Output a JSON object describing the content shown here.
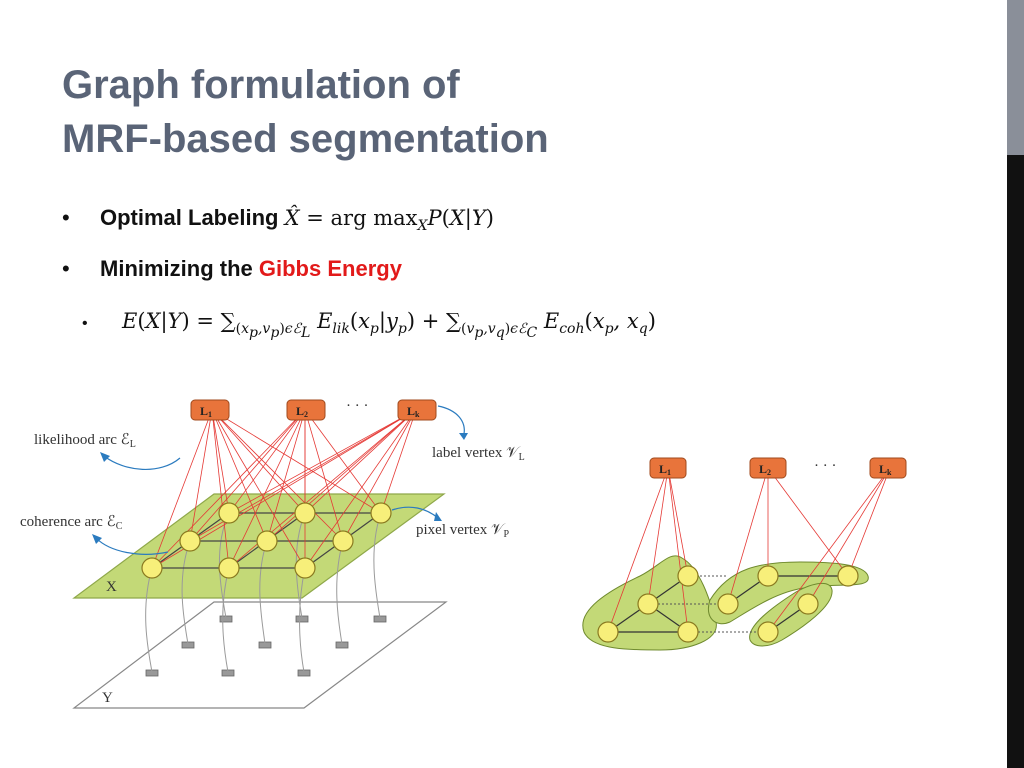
{
  "title": {
    "line1": "Graph formulation of",
    "line2": "MRF-based segmentation"
  },
  "bullets": {
    "b1": {
      "marker": "•",
      "label": "Optimal Labeling",
      "formula": "X̂ = arg max_X P(X|Y)"
    },
    "b2": {
      "marker": "•",
      "prefix": "Minimizing the",
      "highlight": "Gibbs Energy"
    },
    "b3": {
      "marker": "•",
      "formula": "E(X|Y) = Σ_{(x_p,v_p)ϵℰ_L} E_lik(x_p|y_p) + Σ_{(v_p,v_q)ϵℰ_C} E_coh(x_p,x_q)"
    }
  },
  "left_diagram": {
    "label_nodes": [
      "L1",
      "L2",
      "Lk"
    ],
    "ellipsis": "· · ·",
    "annotations": {
      "likelihood_arc": "likelihood arc ℰ",
      "likelihood_sub": "L",
      "label_vertex": "label vertex 𝒱",
      "label_vertex_sub": "L",
      "coherence_arc": "coherence arc ℰ",
      "coherence_sub": "C",
      "pixel_vertex": "pixel vertex 𝒱",
      "pixel_vertex_sub": "P"
    },
    "plane_x": "X",
    "plane_y": "Y"
  },
  "right_diagram": {
    "label_nodes": [
      "L1",
      "L2",
      "Lk"
    ],
    "ellipsis": "· · ·"
  },
  "colors": {
    "title": "#5a6477",
    "highlight": "#e21a1a",
    "node_orange": "#e8743b",
    "node_yellow": "#f7ef7a",
    "plane_green": "#c3d977",
    "edge_red": "#e53935",
    "arrow_blue": "#2b7bbf"
  }
}
